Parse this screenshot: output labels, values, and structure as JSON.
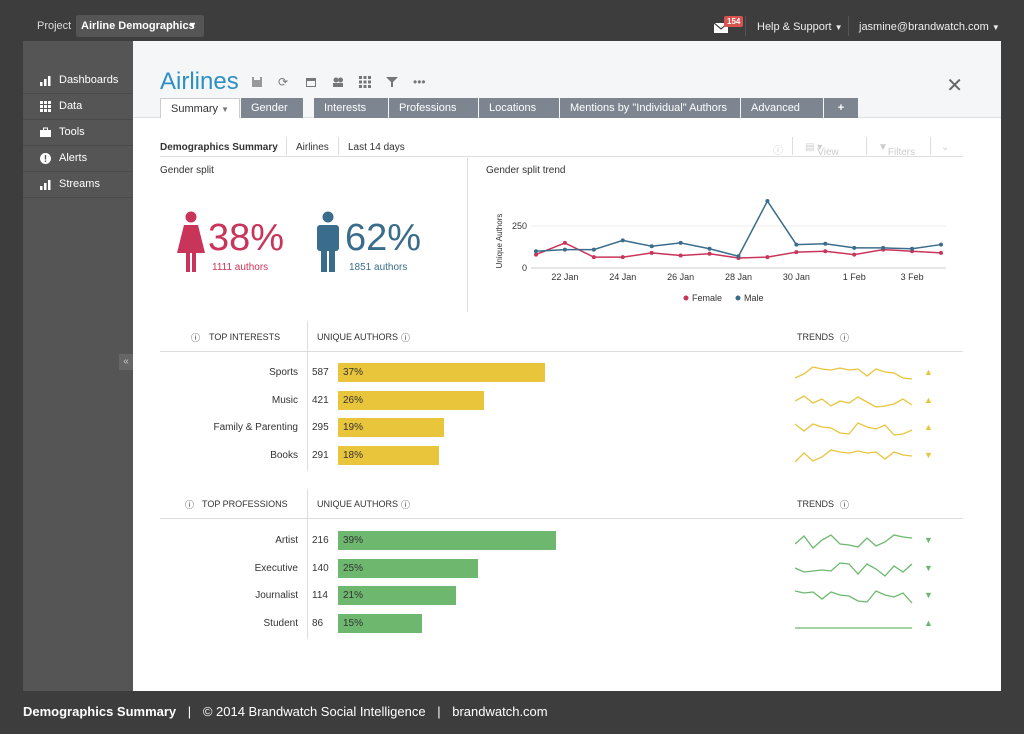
{
  "topbar": {
    "project_label": "Project",
    "project_name": "Airline Demographics",
    "mail_count": "154",
    "help": "Help & Support",
    "user": "jasmine@brandwatch.com"
  },
  "sidebar": {
    "items": [
      {
        "label": "Dashboards",
        "icon": "bar-chart-icon"
      },
      {
        "label": "Data",
        "icon": "grid-icon"
      },
      {
        "label": "Tools",
        "icon": "toolbox-icon"
      },
      {
        "label": "Alerts",
        "icon": "alert-icon"
      },
      {
        "label": "Streams",
        "icon": "streams-icon"
      }
    ],
    "collapse": "«"
  },
  "page": {
    "title": "Airlines",
    "close": "✕",
    "tabs": [
      "Summary",
      "Gender",
      "Interests",
      "Professions",
      "Locations",
      "Mentions by \"Individual\" Authors",
      "Advanced",
      "+"
    ]
  },
  "subheader": {
    "component": "Demographics Summary",
    "query": "Airlines",
    "range": "Last 14 days",
    "view": "View",
    "filters": "Filters"
  },
  "gender": {
    "title": "Gender split",
    "female_pct": "38%",
    "female_authors": "1111 authors",
    "male_pct": "62%",
    "male_authors": "1851 authors",
    "female_color": "#c9345a",
    "male_color": "#3a6d8c"
  },
  "chart_data": {
    "type": "line",
    "title": "Gender split trend",
    "ylabel": "Unique Authors",
    "ylim": [
      0,
      460
    ],
    "yticks": [
      "250",
      "0"
    ],
    "x": [
      "21 Jan",
      "22 Jan",
      "23 Jan",
      "24 Jan",
      "25 Jan",
      "26 Jan",
      "27 Jan",
      "28 Jan",
      "29 Jan",
      "30 Jan",
      "31 Jan",
      "1 Feb",
      "2 Feb",
      "3 Feb",
      "4 Feb"
    ],
    "xticks": [
      "22 Jan",
      "24 Jan",
      "26 Jan",
      "28 Jan",
      "30 Jan",
      "1 Feb",
      "3 Feb"
    ],
    "series": [
      {
        "name": "Female",
        "color": "#c9345a",
        "values": [
          80,
          150,
          65,
          65,
          90,
          75,
          85,
          60,
          65,
          95,
          100,
          80,
          110,
          100,
          90
        ]
      },
      {
        "name": "Male",
        "color": "#3a6d8c",
        "values": [
          100,
          110,
          110,
          165,
          130,
          150,
          115,
          70,
          400,
          140,
          145,
          120,
          120,
          115,
          140
        ]
      }
    ],
    "legend": "bottom"
  },
  "interests": {
    "header": "TOP INTERESTS",
    "col": "UNIQUE AUTHORS",
    "trends": "TRENDS",
    "rows": [
      {
        "label": "Sports",
        "count": "587",
        "pct": "37%",
        "frac": 0.37,
        "dir": "▲"
      },
      {
        "label": "Music",
        "count": "421",
        "pct": "26%",
        "frac": 0.26,
        "dir": "▲"
      },
      {
        "label": "Family & Parenting",
        "count": "295",
        "pct": "19%",
        "frac": 0.19,
        "dir": "▲"
      },
      {
        "label": "Books",
        "count": "291",
        "pct": "18%",
        "frac": 0.18,
        "dir": "▼"
      }
    ]
  },
  "professions": {
    "header": "TOP PROFESSIONS",
    "col": "UNIQUE AUTHORS",
    "trends": "TRENDS",
    "rows": [
      {
        "label": "Artist",
        "count": "216",
        "pct": "39%",
        "frac": 0.39,
        "dir": "▼"
      },
      {
        "label": "Executive",
        "count": "140",
        "pct": "25%",
        "frac": 0.25,
        "dir": "▼"
      },
      {
        "label": "Journalist",
        "count": "114",
        "pct": "21%",
        "frac": 0.21,
        "dir": "▼"
      },
      {
        "label": "Student",
        "count": "86",
        "pct": "15%",
        "frac": 0.15,
        "dir": "▲"
      }
    ]
  },
  "footer": {
    "title": "Demographics Summary",
    "copyright": "© 2014 Brandwatch Social Intelligence",
    "site": "brandwatch.com"
  }
}
